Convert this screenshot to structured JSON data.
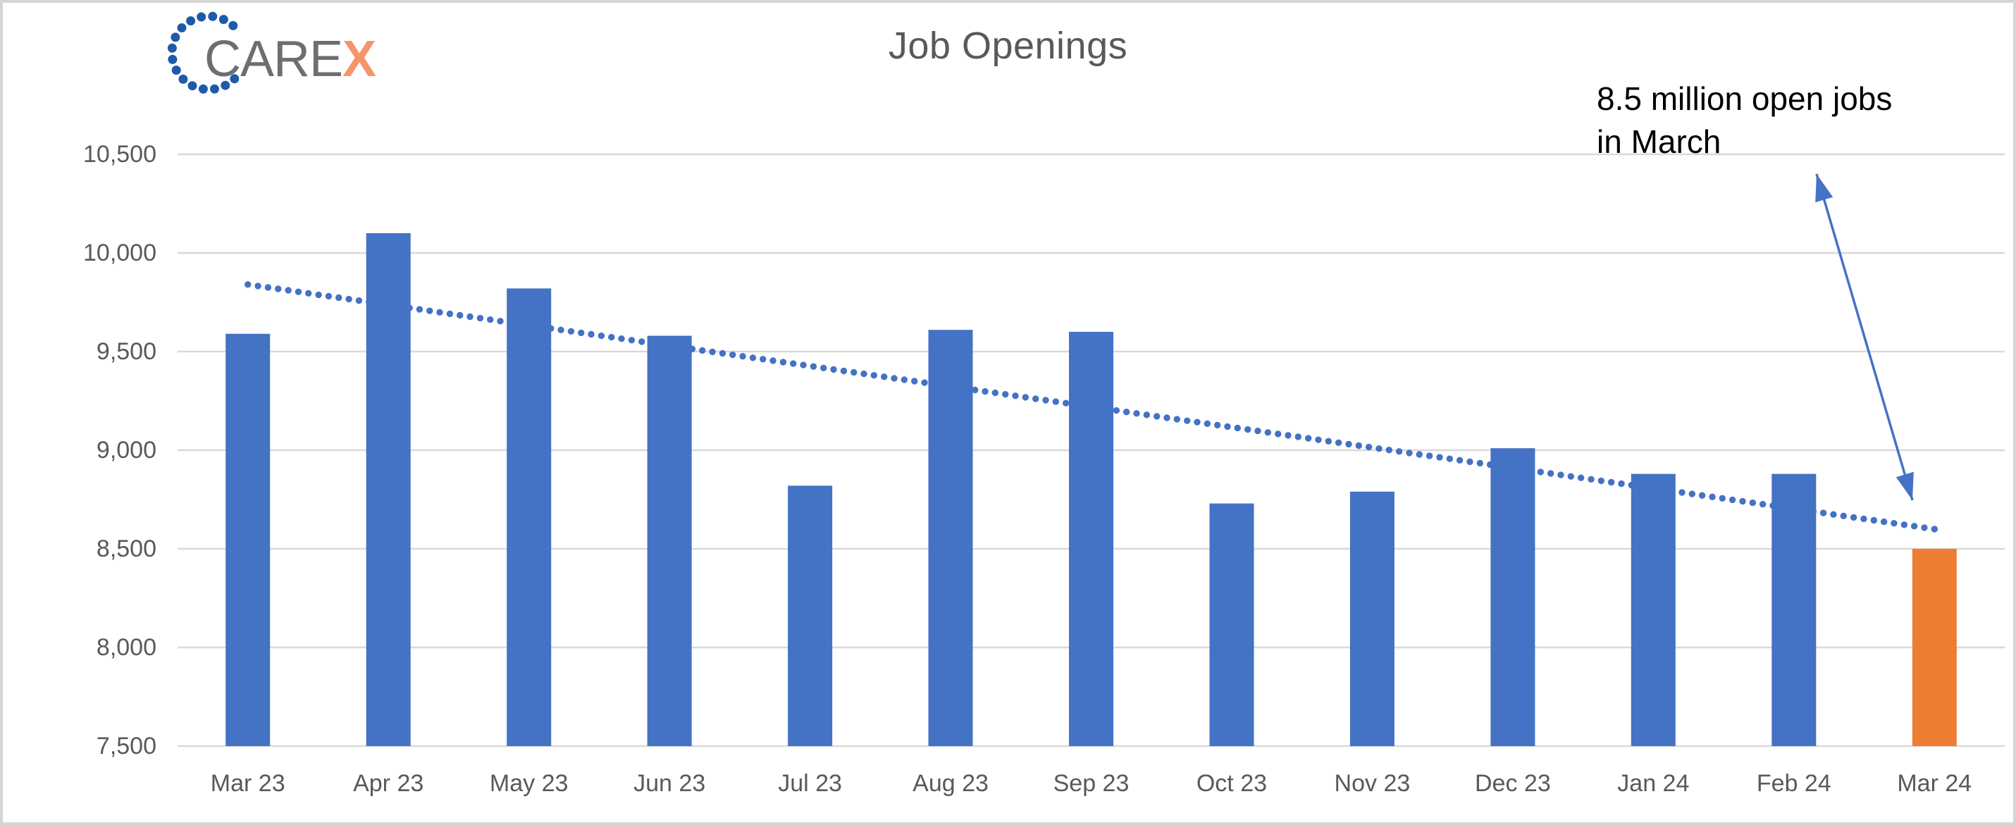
{
  "frame": {
    "background": "#ffffff",
    "border_color": "#d5d5d5"
  },
  "logo": {
    "care_text": "CARE",
    "x_text": "X",
    "care_color": "#6d6e71",
    "x_color": "#f6946c",
    "dot_color": "#1d5ba9"
  },
  "chart_data": {
    "type": "bar",
    "title": "Job Openings",
    "categories": [
      "Mar 23",
      "Apr 23",
      "May 23",
      "Jun 23",
      "Jul 23",
      "Aug 23",
      "Sep 23",
      "Oct 23",
      "Nov 23",
      "Dec 23",
      "Jan 24",
      "Feb 24",
      "Mar 24"
    ],
    "values": [
      9590,
      10100,
      9820,
      9580,
      8820,
      9610,
      9600,
      8730,
      8790,
      9010,
      8880,
      8880,
      8500
    ],
    "ylim": [
      7500,
      10500
    ],
    "yticks": [
      {
        "value": 10500,
        "label": "10,500"
      },
      {
        "value": 10000,
        "label": "10,000"
      },
      {
        "value": 9500,
        "label": "9,500"
      },
      {
        "value": 9000,
        "label": "9,000"
      },
      {
        "value": 8500,
        "label": "8,500"
      },
      {
        "value": 8000,
        "label": "8,000"
      },
      {
        "value": 7500,
        "label": "7,500"
      }
    ],
    "grid": true,
    "legend": "none",
    "bar_color": "#4472c4",
    "highlight_color": "#ed7d31",
    "highlight_index": 12,
    "gridline_color": "#d9d9d9",
    "axis_text_color": "#595959",
    "title_color": "#595959",
    "trendline": {
      "type": "linear",
      "style": "dotted",
      "color": "#4472c4",
      "start_value": 9840,
      "end_value": 8600
    }
  },
  "annotation": {
    "line1": "8.5 million open jobs",
    "line2": "in March",
    "text_color": "#000000",
    "arrow_color": "#4472c4"
  }
}
